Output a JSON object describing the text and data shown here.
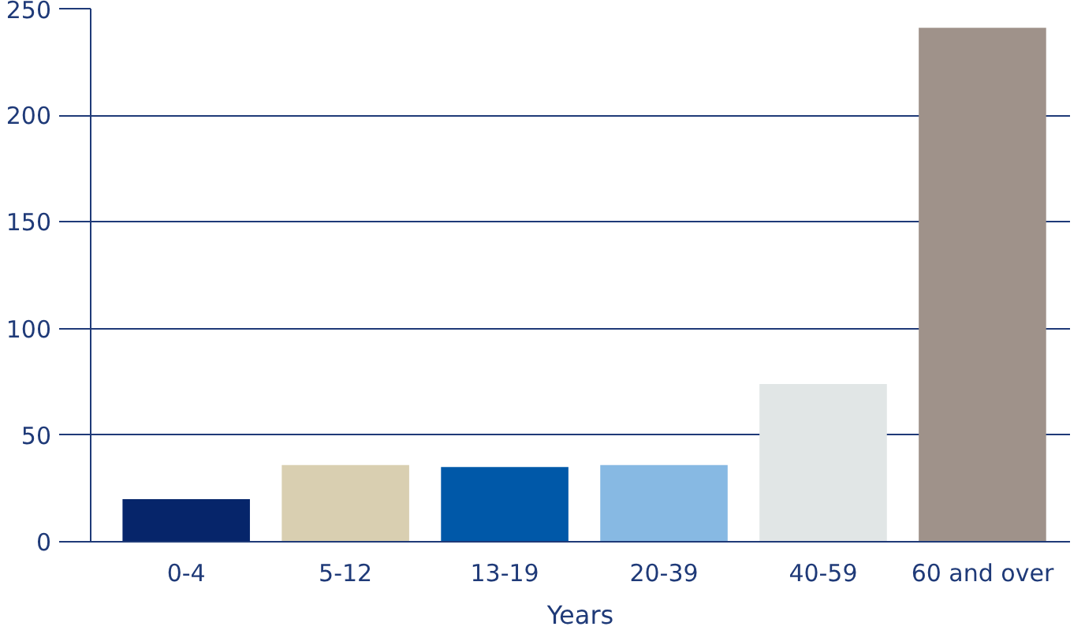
{
  "chart_data": {
    "type": "bar",
    "xlabel": "Years",
    "categories": [
      "0-4",
      "5-12",
      "13-19",
      "20-39",
      "40-59",
      "60 and over"
    ],
    "values": [
      20,
      36,
      35,
      36,
      74,
      241
    ],
    "colors": [
      "#06256a",
      "#d9cfb1",
      "#0058a8",
      "#87b9e3",
      "#e1e6e6",
      "#9f928a"
    ],
    "ylim": [
      0,
      250
    ],
    "yticks": [
      0,
      50,
      100,
      150,
      200,
      250
    ],
    "grid": "y"
  }
}
